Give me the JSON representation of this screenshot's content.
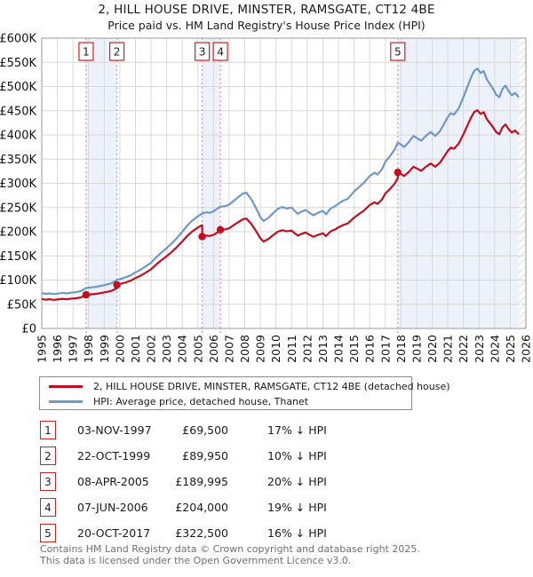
{
  "chart_data": {
    "type": "line",
    "title": "2, HILL HOUSE DRIVE, MINSTER, RAMSGATE, CT12 4BE",
    "subtitle": "Price paid vs. HM Land Registry's House Price Index (HPI)",
    "x_range": [
      1995,
      2026
    ],
    "y_range": [
      0,
      600000
    ],
    "grid": true,
    "legend_position": "below",
    "y_ticks": [
      {
        "v": 0,
        "label": "£0"
      },
      {
        "v": 50000,
        "label": "£50K"
      },
      {
        "v": 100000,
        "label": "£100K"
      },
      {
        "v": 150000,
        "label": "£150K"
      },
      {
        "v": 200000,
        "label": "£200K"
      },
      {
        "v": 250000,
        "label": "£250K"
      },
      {
        "v": 300000,
        "label": "£300K"
      },
      {
        "v": 350000,
        "label": "£350K"
      },
      {
        "v": 400000,
        "label": "£400K"
      },
      {
        "v": 450000,
        "label": "£450K"
      },
      {
        "v": 500000,
        "label": "£500K"
      },
      {
        "v": 550000,
        "label": "£550K"
      },
      {
        "v": 600000,
        "label": "£600K"
      }
    ],
    "x_tick_labels": [
      "1995",
      "1996",
      "1997",
      "1998",
      "1999",
      "2000",
      "2001",
      "2002",
      "2003",
      "2004",
      "2005",
      "2006",
      "2007",
      "2008",
      "2009",
      "2010",
      "2011",
      "2012",
      "2013",
      "2014",
      "2015",
      "2016",
      "2017",
      "2018",
      "2019",
      "2020",
      "2021",
      "2022",
      "2023",
      "2024",
      "2025",
      "2026"
    ],
    "shaded_spans": [
      [
        1997.84,
        1999.81
      ],
      [
        2005.27,
        2006.44
      ],
      [
        2017.8,
        2026
      ]
    ],
    "hatched_span": [
      2025.55,
      2026
    ],
    "colors": {
      "price_paid": "#c30d1e",
      "hpi": "#6f98c9",
      "marker_dash": "#ee8585",
      "band": "#edf1fa",
      "grid": "#d8d8d8",
      "plot_border": "#9a9a9a",
      "hatch": "#c4c4c4",
      "badge_border": "#cc2222"
    },
    "markers": [
      {
        "n": "1",
        "year": 1997.84,
        "price": 69500
      },
      {
        "n": "2",
        "year": 1999.81,
        "price": 89950
      },
      {
        "n": "3",
        "year": 2005.27,
        "price": 189995
      },
      {
        "n": "4",
        "year": 2006.44,
        "price": 204000
      },
      {
        "n": "5",
        "year": 2017.8,
        "price": 322500
      }
    ],
    "series": [
      {
        "name": "2, HILL HOUSE DRIVE, MINSTER, RAMSGATE, CT12 4BE (detached house)",
        "color": "#c30d1e",
        "points": [
          [
            1995.0,
            60700
          ],
          [
            1995.25,
            59500
          ],
          [
            1995.5,
            60300
          ],
          [
            1995.75,
            59100
          ],
          [
            1996.0,
            59900
          ],
          [
            1996.3,
            61200
          ],
          [
            1996.6,
            60300
          ],
          [
            1996.9,
            61600
          ],
          [
            1997.2,
            62400
          ],
          [
            1997.5,
            64100
          ],
          [
            1997.84,
            69500
          ],
          [
            1998.2,
            70700
          ],
          [
            1998.5,
            71600
          ],
          [
            1998.8,
            73200
          ],
          [
            1999.2,
            75700
          ],
          [
            1999.5,
            78200
          ],
          [
            1999.81,
            83200
          ],
          [
            1999.81,
            89950
          ],
          [
            2000.1,
            92600
          ],
          [
            2000.4,
            95300
          ],
          [
            2000.7,
            98900
          ],
          [
            2001.0,
            104300
          ],
          [
            2001.3,
            108800
          ],
          [
            2001.6,
            114200
          ],
          [
            2002.0,
            122300
          ],
          [
            2002.3,
            131300
          ],
          [
            2002.6,
            139400
          ],
          [
            2003.0,
            149300
          ],
          [
            2003.3,
            157400
          ],
          [
            2003.6,
            166400
          ],
          [
            2004.0,
            179900
          ],
          [
            2004.3,
            190700
          ],
          [
            2004.6,
            199700
          ],
          [
            2005.0,
            208700
          ],
          [
            2005.27,
            213600
          ],
          [
            2005.27,
            189995
          ],
          [
            2005.5,
            192000
          ],
          [
            2005.75,
            191200
          ],
          [
            2006.0,
            193600
          ],
          [
            2006.44,
            201600
          ],
          [
            2006.44,
            204000
          ],
          [
            2006.7,
            204400
          ],
          [
            2007.0,
            207200
          ],
          [
            2007.3,
            213700
          ],
          [
            2007.6,
            220200
          ],
          [
            2007.9,
            225900
          ],
          [
            2008.1,
            227100
          ],
          [
            2008.4,
            216900
          ],
          [
            2008.7,
            202400
          ],
          [
            2009.0,
            186200
          ],
          [
            2009.2,
            179700
          ],
          [
            2009.5,
            184600
          ],
          [
            2009.8,
            192700
          ],
          [
            2010.1,
            199900
          ],
          [
            2010.4,
            203200
          ],
          [
            2010.7,
            200800
          ],
          [
            2011.0,
            202400
          ],
          [
            2011.2,
            196700
          ],
          [
            2011.4,
            191800
          ],
          [
            2011.6,
            195100
          ],
          [
            2011.9,
            198300
          ],
          [
            2012.1,
            194300
          ],
          [
            2012.4,
            189400
          ],
          [
            2012.7,
            193500
          ],
          [
            2013.0,
            196700
          ],
          [
            2013.2,
            191000
          ],
          [
            2013.5,
            200800
          ],
          [
            2013.8,
            204800
          ],
          [
            2014.0,
            208900
          ],
          [
            2014.3,
            213700
          ],
          [
            2014.6,
            217000
          ],
          [
            2015.0,
            229100
          ],
          [
            2015.3,
            236400
          ],
          [
            2015.6,
            242900
          ],
          [
            2016.0,
            255000
          ],
          [
            2016.3,
            260700
          ],
          [
            2016.5,
            257400
          ],
          [
            2016.8,
            267100
          ],
          [
            2017.0,
            279300
          ],
          [
            2017.3,
            288200
          ],
          [
            2017.6,
            299500
          ],
          [
            2017.8,
            310900
          ],
          [
            2017.8,
            322500
          ],
          [
            2018.0,
            319200
          ],
          [
            2018.2,
            315000
          ],
          [
            2018.5,
            323400
          ],
          [
            2018.8,
            334300
          ],
          [
            2019.0,
            331000
          ],
          [
            2019.3,
            325900
          ],
          [
            2019.6,
            334300
          ],
          [
            2019.9,
            341000
          ],
          [
            2020.2,
            334300
          ],
          [
            2020.5,
            342700
          ],
          [
            2020.8,
            357000
          ],
          [
            2021.0,
            367100
          ],
          [
            2021.2,
            373800
          ],
          [
            2021.4,
            371300
          ],
          [
            2021.7,
            382200
          ],
          [
            2022.0,
            401500
          ],
          [
            2022.2,
            415800
          ],
          [
            2022.5,
            436800
          ],
          [
            2022.7,
            447700
          ],
          [
            2022.9,
            451100
          ],
          [
            2023.1,
            443500
          ],
          [
            2023.3,
            446900
          ],
          [
            2023.5,
            432600
          ],
          [
            2023.7,
            424200
          ],
          [
            2023.9,
            415800
          ],
          [
            2024.1,
            405700
          ],
          [
            2024.3,
            401500
          ],
          [
            2024.5,
            415800
          ],
          [
            2024.7,
            421700
          ],
          [
            2024.9,
            411600
          ],
          [
            2025.1,
            404900
          ],
          [
            2025.3,
            409100
          ],
          [
            2025.55,
            401500
          ]
        ]
      },
      {
        "name": "HPI: Average price, detached house, Thanet",
        "color": "#6f98c9",
        "points": [
          [
            1995.0,
            73000
          ],
          [
            1995.25,
            71500
          ],
          [
            1995.5,
            72500
          ],
          [
            1995.75,
            71000
          ],
          [
            1996.0,
            72000
          ],
          [
            1996.3,
            73500
          ],
          [
            1996.6,
            72500
          ],
          [
            1996.9,
            74000
          ],
          [
            1997.2,
            75000
          ],
          [
            1997.5,
            77000
          ],
          [
            1997.84,
            83500
          ],
          [
            1998.2,
            85000
          ],
          [
            1998.5,
            86000
          ],
          [
            1998.8,
            88000
          ],
          [
            1999.2,
            91000
          ],
          [
            1999.5,
            94000
          ],
          [
            1999.81,
            100000
          ],
          [
            2000.1,
            103000
          ],
          [
            2000.4,
            106000
          ],
          [
            2000.7,
            110000
          ],
          [
            2001.0,
            116000
          ],
          [
            2001.3,
            121000
          ],
          [
            2001.6,
            127000
          ],
          [
            2002.0,
            136000
          ],
          [
            2002.3,
            146000
          ],
          [
            2002.6,
            155000
          ],
          [
            2003.0,
            166000
          ],
          [
            2003.3,
            175000
          ],
          [
            2003.6,
            185000
          ],
          [
            2004.0,
            200000
          ],
          [
            2004.3,
            212000
          ],
          [
            2004.6,
            222000
          ],
          [
            2005.0,
            232000
          ],
          [
            2005.27,
            237500
          ],
          [
            2005.5,
            240000
          ],
          [
            2005.75,
            239000
          ],
          [
            2006.0,
            242000
          ],
          [
            2006.44,
            252000
          ],
          [
            2006.7,
            252500
          ],
          [
            2007.0,
            256000
          ],
          [
            2007.3,
            264000
          ],
          [
            2007.6,
            272000
          ],
          [
            2007.9,
            279000
          ],
          [
            2008.1,
            280500
          ],
          [
            2008.4,
            268000
          ],
          [
            2008.7,
            250000
          ],
          [
            2009.0,
            230000
          ],
          [
            2009.2,
            222000
          ],
          [
            2009.5,
            228000
          ],
          [
            2009.8,
            238000
          ],
          [
            2010.1,
            247000
          ],
          [
            2010.4,
            251000
          ],
          [
            2010.7,
            248000
          ],
          [
            2011.0,
            250000
          ],
          [
            2011.2,
            243000
          ],
          [
            2011.4,
            237000
          ],
          [
            2011.6,
            241000
          ],
          [
            2011.9,
            245000
          ],
          [
            2012.1,
            240000
          ],
          [
            2012.4,
            234000
          ],
          [
            2012.7,
            239000
          ],
          [
            2013.0,
            243000
          ],
          [
            2013.2,
            236000
          ],
          [
            2013.5,
            248000
          ],
          [
            2013.8,
            253000
          ],
          [
            2014.0,
            258000
          ],
          [
            2014.3,
            264000
          ],
          [
            2014.6,
            268000
          ],
          [
            2015.0,
            283000
          ],
          [
            2015.3,
            292000
          ],
          [
            2015.6,
            300000
          ],
          [
            2016.0,
            315000
          ],
          [
            2016.3,
            322000
          ],
          [
            2016.5,
            318000
          ],
          [
            2016.8,
            330000
          ],
          [
            2017.0,
            345000
          ],
          [
            2017.3,
            356000
          ],
          [
            2017.6,
            370000
          ],
          [
            2017.8,
            384000
          ],
          [
            2018.0,
            380000
          ],
          [
            2018.2,
            375000
          ],
          [
            2018.5,
            385000
          ],
          [
            2018.8,
            398000
          ],
          [
            2019.0,
            394000
          ],
          [
            2019.3,
            388000
          ],
          [
            2019.6,
            398000
          ],
          [
            2019.9,
            406000
          ],
          [
            2020.2,
            398000
          ],
          [
            2020.5,
            408000
          ],
          [
            2020.8,
            425000
          ],
          [
            2021.0,
            437000
          ],
          [
            2021.2,
            445000
          ],
          [
            2021.4,
            442000
          ],
          [
            2021.7,
            455000
          ],
          [
            2022.0,
            478000
          ],
          [
            2022.2,
            495000
          ],
          [
            2022.5,
            520000
          ],
          [
            2022.7,
            533000
          ],
          [
            2022.9,
            537000
          ],
          [
            2023.1,
            528000
          ],
          [
            2023.3,
            532000
          ],
          [
            2023.5,
            515000
          ],
          [
            2023.7,
            505000
          ],
          [
            2023.9,
            495000
          ],
          [
            2024.1,
            483000
          ],
          [
            2024.3,
            478000
          ],
          [
            2024.5,
            495000
          ],
          [
            2024.7,
            502000
          ],
          [
            2024.9,
            490000
          ],
          [
            2025.1,
            482000
          ],
          [
            2025.3,
            487000
          ],
          [
            2025.55,
            478000
          ]
        ]
      }
    ]
  },
  "sales_table": {
    "rows": [
      {
        "n": "1",
        "date": "03-NOV-1997",
        "price": "£69,500",
        "vs_hpi": "17% ↓ HPI"
      },
      {
        "n": "2",
        "date": "22-OCT-1999",
        "price": "£89,950",
        "vs_hpi": "10% ↓ HPI"
      },
      {
        "n": "3",
        "date": "08-APR-2005",
        "price": "£189,995",
        "vs_hpi": "20% ↓ HPI"
      },
      {
        "n": "4",
        "date": "07-JUN-2006",
        "price": "£204,000",
        "vs_hpi": "19% ↓ HPI"
      },
      {
        "n": "5",
        "date": "20-OCT-2017",
        "price": "£322,500",
        "vs_hpi": "16% ↓ HPI"
      }
    ]
  },
  "footer": {
    "line1": "Contains HM Land Registry data © Crown copyright and database right 2025.",
    "line2": "This data is licensed under the Open Government Licence v3.0."
  }
}
